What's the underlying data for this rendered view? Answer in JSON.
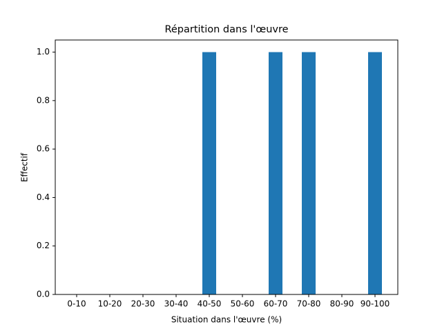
{
  "chart_data": {
    "type": "bar",
    "title": "Répartition dans l'œuvre",
    "xlabel": "Situation dans l'œuvre (%)",
    "ylabel": "Effectif",
    "categories": [
      "0-10",
      "10-20",
      "20-30",
      "30-40",
      "40-50",
      "50-60",
      "60-70",
      "70-80",
      "80-90",
      "90-100"
    ],
    "values": [
      0,
      0,
      0,
      0,
      1,
      0,
      1,
      1,
      0,
      1
    ],
    "color": "#1f77b4",
    "ylim": [
      0,
      1.05
    ],
    "yticks": [
      {
        "value": 0,
        "label": "0.0"
      },
      0.2,
      0.4,
      0.6,
      0.8,
      {
        "value": 1,
        "label": "1.0"
      }
    ],
    "grid": false
  }
}
